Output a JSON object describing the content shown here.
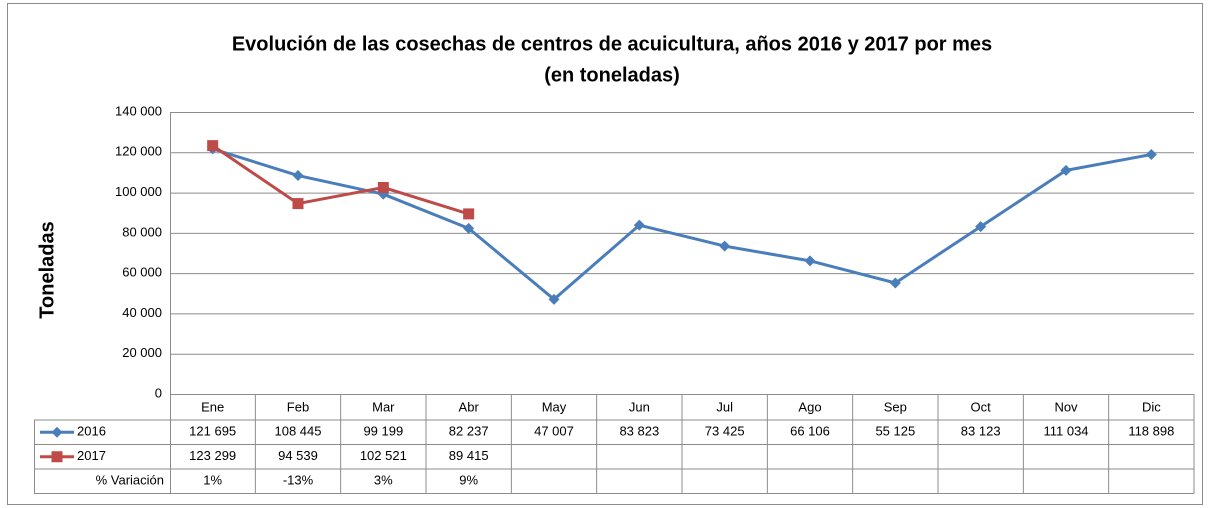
{
  "chart_data": {
    "type": "line",
    "title": "Evolución de las cosechas de centros de acuicultura, años 2016 y 2017 por mes",
    "subtitle": "(en toneladas)",
    "y_label": "Toneladas",
    "categories": [
      "Ene",
      "Feb",
      "Mar",
      "Abr",
      "May",
      "Jun",
      "Jul",
      "Ago",
      "Sep",
      "Oct",
      "Nov",
      "Dic"
    ],
    "series": [
      {
        "name": "2016",
        "color": "#4a7ebb",
        "marker": "diamond",
        "values": [
          121695,
          108445,
          99199,
          82237,
          47007,
          83823,
          73425,
          66106,
          55125,
          83123,
          111034,
          118898
        ],
        "value_labels": [
          "121 695",
          "108 445",
          "99 199",
          "82 237",
          "47 007",
          "83 823",
          "73 425",
          "66 106",
          "55 125",
          "83 123",
          "111 034",
          "118 898"
        ]
      },
      {
        "name": "2017",
        "color": "#be4b48",
        "marker": "square",
        "values": [
          123299,
          94539,
          102521,
          89415,
          null,
          null,
          null,
          null,
          null,
          null,
          null,
          null
        ],
        "value_labels": [
          "123 299",
          "94 539",
          "102 521",
          "89 415",
          null,
          null,
          null,
          null,
          null,
          null,
          null,
          null
        ]
      }
    ],
    "table_rows": [
      {
        "name": "% Variación",
        "values": [
          1,
          -13,
          3,
          9,
          null,
          null,
          null,
          null,
          null,
          null,
          null,
          null
        ],
        "value_labels": [
          "1%",
          "-13%",
          "3%",
          "9%",
          null,
          null,
          null,
          null,
          null,
          null,
          null,
          null
        ]
      }
    ],
    "ylim": [
      0,
      140000
    ],
    "yticks": [
      0,
      {
        "value": 20000,
        "label": "20 000"
      },
      {
        "value": 40000,
        "label": "40 000"
      },
      {
        "value": 60000,
        "label": "60 000"
      },
      {
        "value": 80000,
        "label": "80 000"
      },
      {
        "value": 100000,
        "label": "100 000"
      },
      {
        "value": 120000,
        "label": "120 000"
      },
      {
        "value": 140000,
        "label": "140 000"
      }
    ],
    "grid": true
  }
}
